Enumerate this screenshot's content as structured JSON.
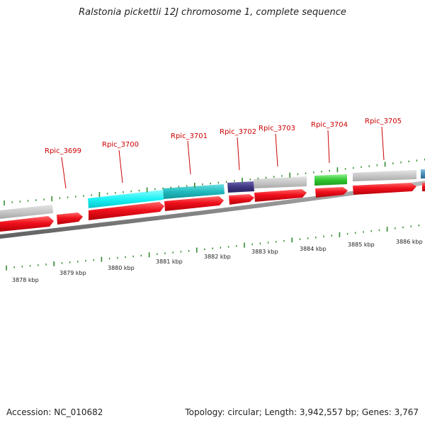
{
  "title": "Ralstonia pickettii 12J chromosome 1, complete sequence",
  "footer": {
    "accession": "Accession: NC_010682",
    "topology": "Topology: circular; Length: 3,942,557 bp; Genes: 3,767"
  },
  "colors": {
    "backbone": "#8c8c8c",
    "forward_cds": "#e8101e",
    "tick": "#2e8b2e",
    "label": "#cc0000"
  },
  "gene_labels": [
    "Rpic_3699",
    "Rpic_3700",
    "Rpic_3701",
    "Rpic_3702",
    "Rpic_3703",
    "Rpic_3704",
    "Rpic_3705"
  ],
  "kbp_labels": [
    "3878 kbp",
    "3879 kbp",
    "3880 kbp",
    "3881 kbp",
    "3882 kbp",
    "3883 kbp",
    "3884 kbp",
    "3885 kbp",
    "3886 kbp"
  ],
  "feature_colors": [
    "#c8c8c8",
    "#00ffff",
    "#20c8cc",
    "#3d3580",
    "#c8c8c8",
    "#30c830",
    "#c8c8c8",
    "#4a8fb8"
  ]
}
